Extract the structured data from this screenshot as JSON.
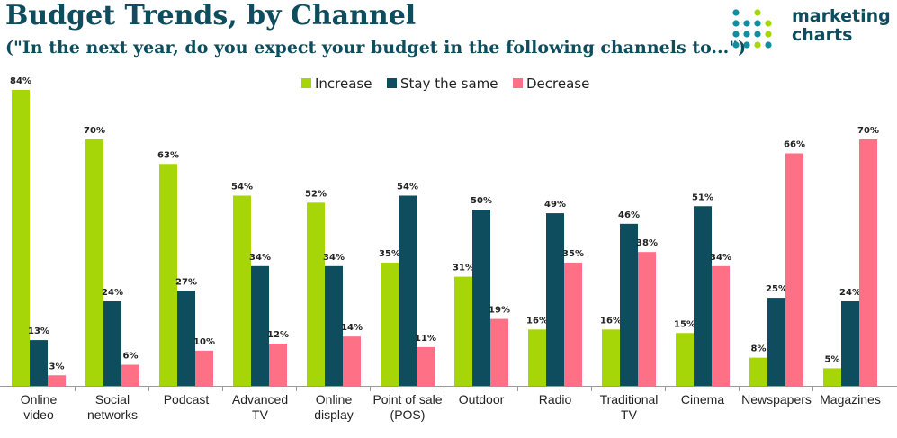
{
  "title": "Budget Trends, by Channel",
  "subtitle": "(\"In the next year, do you expect your budget in the following channels to...\")",
  "logo": {
    "line1": "marketing",
    "line2": "charts"
  },
  "colors": {
    "increase": "#a6d608",
    "same": "#0e4d5e",
    "decrease": "#fe7086"
  },
  "chart_data": {
    "type": "bar",
    "categories": [
      [
        "Online",
        "video"
      ],
      [
        "Social",
        "networks"
      ],
      [
        "Podcast"
      ],
      [
        "Advanced",
        "TV"
      ],
      [
        "Online",
        "display"
      ],
      [
        "Point of sale",
        "(POS)"
      ],
      [
        "Outdoor"
      ],
      [
        "Radio"
      ],
      [
        "Traditional",
        "TV"
      ],
      [
        "Cinema"
      ],
      [
        "Newspapers"
      ],
      [
        "Magazines"
      ]
    ],
    "series": [
      {
        "name": "Increase",
        "values": [
          84,
          70,
          63,
          54,
          52,
          35,
          31,
          16,
          16,
          15,
          8,
          5
        ]
      },
      {
        "name": "Stay the same",
        "values": [
          13,
          24,
          27,
          34,
          34,
          54,
          50,
          49,
          46,
          51,
          25,
          24
        ]
      },
      {
        "name": "Decrease",
        "values": [
          3,
          6,
          10,
          12,
          14,
          11,
          19,
          35,
          38,
          34,
          66,
          70
        ]
      }
    ],
    "value_suffix": "%",
    "ylim": [
      0,
      84
    ],
    "legend_position": "top-center",
    "grid": false
  }
}
